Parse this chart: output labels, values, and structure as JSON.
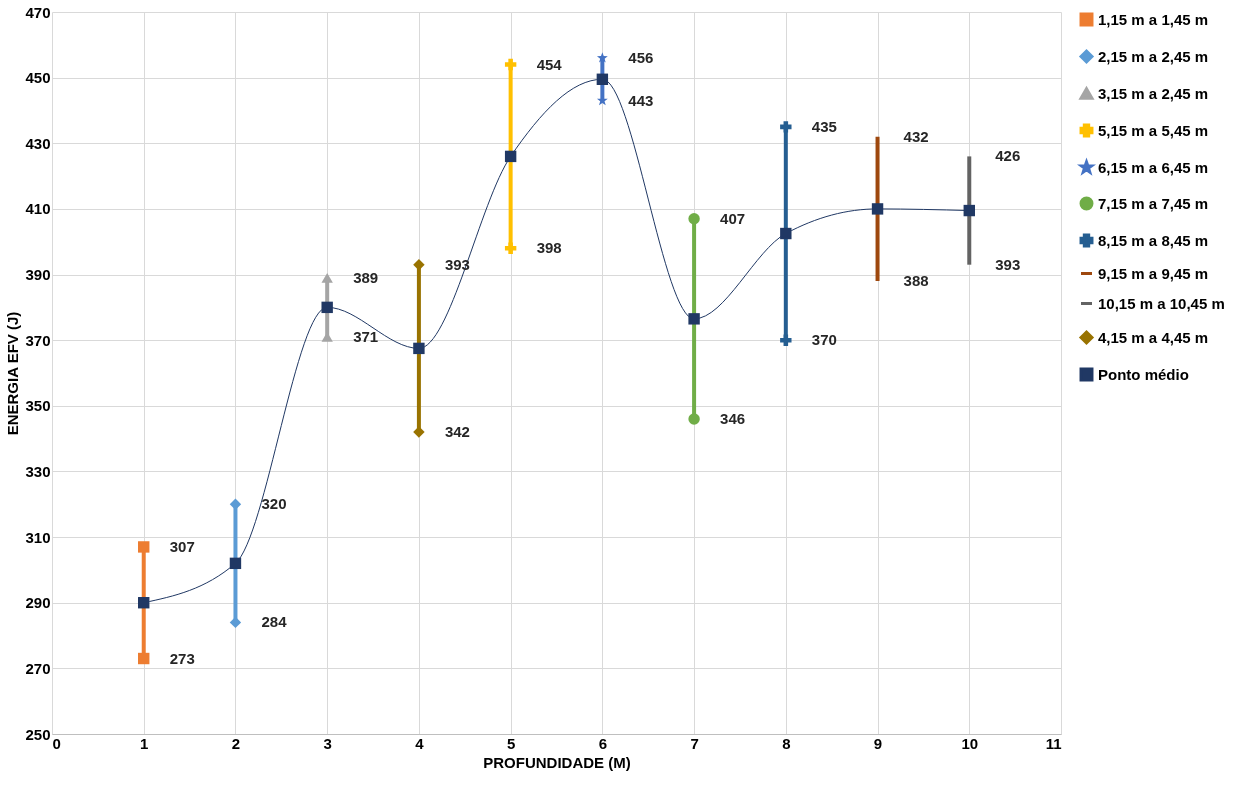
{
  "chart_data": {
    "type": "line",
    "xlabel": "PROFUNDIDADE (M)",
    "ylabel": "ENERGIA EFV (J)",
    "xlim": [
      0,
      11
    ],
    "xticks": [
      0,
      1,
      2,
      3,
      4,
      5,
      6,
      7,
      8,
      9,
      10,
      11
    ],
    "ylim": [
      250,
      470
    ],
    "yticks": [
      250,
      270,
      290,
      310,
      330,
      350,
      370,
      390,
      410,
      430,
      450,
      470
    ],
    "grid": true,
    "legend": "right",
    "series": [
      {
        "name": "1,15 m a 1,45 m",
        "color": "#ed7d31",
        "marker": "square",
        "x": [
          1,
          1
        ],
        "values": [
          273,
          307
        ],
        "value_labels": [
          "273",
          "307"
        ]
      },
      {
        "name": "2,15 m a 2,45 m",
        "color": "#5b9bd5",
        "marker": "diamond",
        "x": [
          2,
          2
        ],
        "values": [
          284,
          320
        ],
        "value_labels": [
          "284",
          "320"
        ]
      },
      {
        "name": "3,15 m a 2,45 m",
        "color": "#a5a5a5",
        "marker": "triangle",
        "x": [
          3,
          3
        ],
        "values": [
          371,
          389
        ],
        "value_labels": [
          "371",
          "389"
        ]
      },
      {
        "name": "5,15 m a 5,45 m",
        "color": "#ffc000",
        "marker": "cross",
        "x": [
          5,
          5
        ],
        "values": [
          398,
          454
        ],
        "value_labels": [
          "398",
          "454"
        ]
      },
      {
        "name": "6,15 m a 6,45 m",
        "color": "#4472c4",
        "marker": "star",
        "x": [
          6,
          6
        ],
        "values": [
          443,
          456
        ],
        "value_labels": [
          "443",
          "456"
        ]
      },
      {
        "name": "7,15 m a 7,45 m",
        "color": "#70ad47",
        "marker": "circle",
        "x": [
          7,
          7
        ],
        "values": [
          346,
          407
        ],
        "value_labels": [
          "346",
          "407"
        ]
      },
      {
        "name": "8,15 m a 8,45 m",
        "color": "#255e91",
        "marker": "cross",
        "x": [
          8,
          8
        ],
        "values": [
          370,
          435
        ],
        "value_labels": [
          "370",
          "435"
        ]
      },
      {
        "name": "9,15 m a 9,45 m",
        "color": "#9e480e",
        "marker": "none",
        "x": [
          9,
          9
        ],
        "values": [
          388,
          432
        ],
        "value_labels": [
          "388",
          "432"
        ]
      },
      {
        "name": "10,15 m a 10,45 m",
        "color": "#636363",
        "marker": "none",
        "x": [
          10,
          10
        ],
        "values": [
          393,
          426
        ],
        "value_labels": [
          "393",
          "426"
        ]
      },
      {
        "name": "4,15 m a 4,45 m",
        "color": "#997300",
        "marker": "diamond",
        "x": [
          4,
          4
        ],
        "values": [
          342,
          393
        ],
        "value_labels": [
          "342",
          "393"
        ]
      },
      {
        "name": "Ponto médio",
        "color": "#203864",
        "marker": "square",
        "line_style": "solid",
        "x": [
          1,
          2,
          3,
          4,
          5,
          6,
          7,
          8,
          9,
          10
        ],
        "values": [
          290,
          302,
          380,
          367.5,
          426,
          449.5,
          376.5,
          402.5,
          410,
          409.5
        ]
      }
    ]
  }
}
